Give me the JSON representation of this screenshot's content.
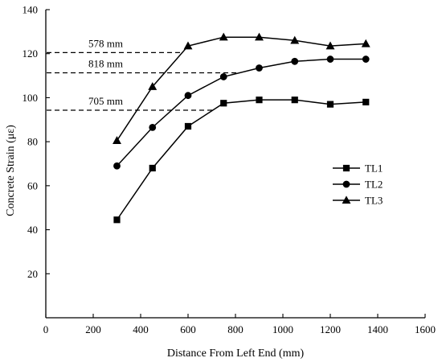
{
  "chart_data": {
    "type": "line",
    "xlabel": "Distance From Left End (mm)",
    "ylabel": "Concrete Strain (με)",
    "xlim": [
      0,
      1600
    ],
    "ylim": [
      0,
      140
    ],
    "xticks": [
      0,
      200,
      400,
      600,
      800,
      1000,
      1200,
      1400,
      1600
    ],
    "yticks": [
      20,
      40,
      60,
      80,
      100,
      120,
      140
    ],
    "x": [
      300,
      450,
      600,
      750,
      900,
      1050,
      1200,
      1350
    ],
    "series": [
      {
        "name": "TL1",
        "marker": "square",
        "values": [
          44.5,
          68,
          87,
          97.5,
          99,
          99,
          97,
          98
        ]
      },
      {
        "name": "TL2",
        "marker": "circle",
        "values": [
          69,
          86.5,
          101,
          109.5,
          113.5,
          116.5,
          117.5,
          117.5
        ]
      },
      {
        "name": "TL3",
        "marker": "triangle",
        "values": [
          80.5,
          105,
          123.5,
          127.5,
          127.5,
          126,
          123.5,
          124.5
        ]
      }
    ],
    "reference_lines": [
      {
        "label": "578 mm",
        "y": 120.5,
        "x_end": 578
      },
      {
        "label": "818 mm",
        "y": 111.3,
        "x_end": 818
      },
      {
        "label": "705 mm",
        "y": 94.3,
        "x_end": 705
      }
    ],
    "grid": false,
    "legend_position": "right"
  }
}
